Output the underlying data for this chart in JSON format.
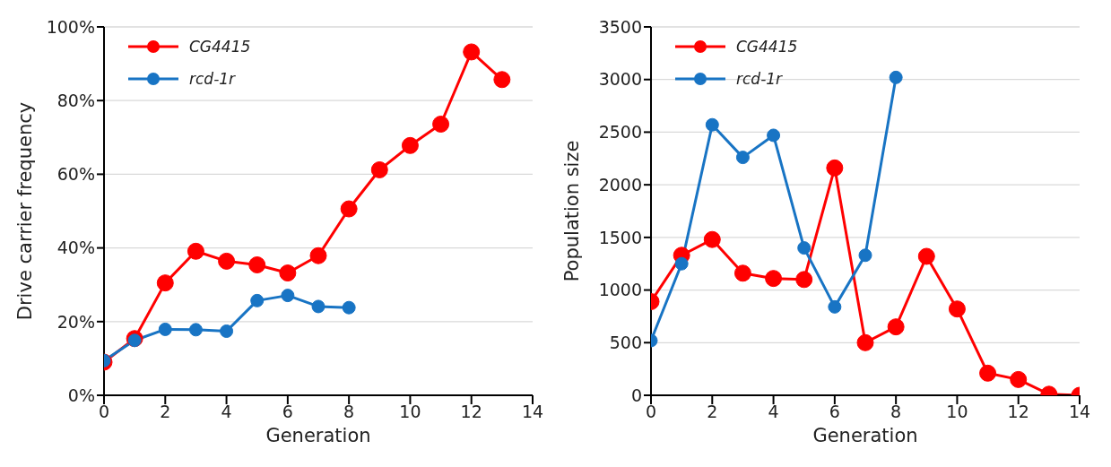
{
  "chart_data": [
    {
      "type": "line",
      "xlabel": "Generation",
      "ylabel": "Drive carrier frequency",
      "x": [
        0,
        1,
        2,
        3,
        4,
        5,
        6,
        7,
        8,
        9,
        10,
        11,
        12,
        13
      ],
      "series": [
        {
          "name": "CG4415",
          "color": "#ff0000",
          "values": [
            9.0,
            15.4,
            30.5,
            39.1,
            36.4,
            35.4,
            33.2,
            37.9,
            50.6,
            61.2,
            67.8,
            73.6,
            93.2,
            85.7
          ]
        },
        {
          "name": "rcd-1r",
          "color": "#1874c4",
          "x": [
            0,
            1,
            2,
            3,
            4,
            5,
            6,
            7,
            8
          ],
          "values": [
            9.4,
            14.9,
            17.9,
            17.8,
            17.4,
            25.7,
            27.1,
            24.1,
            23.8
          ]
        }
      ],
      "xlim": [
        0,
        14
      ],
      "xticks": [
        0,
        2,
        4,
        6,
        8,
        10,
        12,
        14
      ],
      "ylim": [
        0,
        100
      ],
      "yticks": [
        {
          "value": 0,
          "label": "0%"
        },
        {
          "value": 20,
          "label": "20%"
        },
        {
          "value": 40,
          "label": "40%"
        },
        {
          "value": 60,
          "label": "60%"
        },
        {
          "value": 80,
          "label": "80%"
        },
        {
          "value": 100,
          "label": "100%"
        }
      ],
      "grid": "y",
      "legend": "top left",
      "marker": "circle",
      "line_style": "solid"
    },
    {
      "type": "line",
      "xlabel": "Generation",
      "ylabel": "Population size",
      "x": [
        0,
        1,
        2,
        3,
        4,
        5,
        6,
        7,
        8,
        9,
        10,
        11,
        12,
        13,
        14
      ],
      "series": [
        {
          "name": "CG4415",
          "color": "#ff0000",
          "values": [
            890,
            1330,
            1480,
            1160,
            1110,
            1100,
            2160,
            500,
            650,
            1320,
            820,
            210,
            150,
            10,
            0
          ]
        },
        {
          "name": "rcd-1r",
          "color": "#1874c4",
          "x": [
            0,
            1,
            2,
            3,
            4,
            5,
            6,
            7,
            8
          ],
          "values": [
            520,
            1250,
            2570,
            2260,
            2470,
            1400,
            840,
            1330,
            3020
          ]
        }
      ],
      "xlim": [
        0,
        14
      ],
      "xticks": [
        0,
        2,
        4,
        6,
        8,
        10,
        12,
        14
      ],
      "ylim": [
        0,
        3500
      ],
      "yticks": [
        0,
        500,
        1000,
        1500,
        2000,
        2500,
        3000,
        3500
      ],
      "grid": "y",
      "legend": "top left",
      "marker": "circle",
      "line_style": "solid"
    }
  ]
}
